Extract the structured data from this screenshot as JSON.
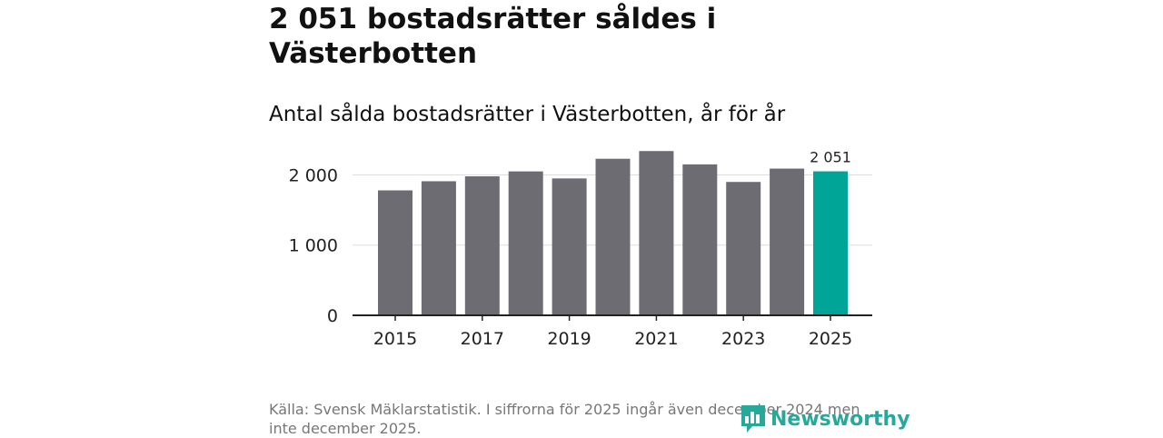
{
  "title": "2 051 bostadsrätter såldes i Västerbotten",
  "subtitle": "Antal sålda bostadsrätter i Västerbotten, år för år",
  "source": "Källa: Svensk Mäklarstatistik. I siffrorna för 2025 ingår även december 2024 men inte december 2025.",
  "brand": {
    "name": "Newsworthy",
    "icon": "newsworthy-logo-icon"
  },
  "colors": {
    "bar": "#6d6c73",
    "highlight": "#00a598",
    "grid": "#dddddd",
    "axis": "#222222"
  },
  "chart_data": {
    "type": "bar",
    "title": "Antal sålda bostadsrätter i Västerbotten, år för år",
    "categories": [
      "2015",
      "2016",
      "2017",
      "2018",
      "2019",
      "2020",
      "2021",
      "2022",
      "2023",
      "2024",
      "2025"
    ],
    "values": [
      1780,
      1910,
      1980,
      2050,
      1950,
      2230,
      2340,
      2150,
      1900,
      2090,
      2051
    ],
    "x_tick_labels": [
      "2015",
      "2017",
      "2019",
      "2021",
      "2023",
      "2025"
    ],
    "y_ticks": [
      0,
      1000,
      2000
    ],
    "y_tick_labels": [
      "0",
      "1 000",
      "2 000"
    ],
    "ylim": [
      0,
      2550
    ],
    "highlight_index": 10,
    "highlight_label": "2 051",
    "xlabel": "",
    "ylabel": "",
    "grid": true
  }
}
